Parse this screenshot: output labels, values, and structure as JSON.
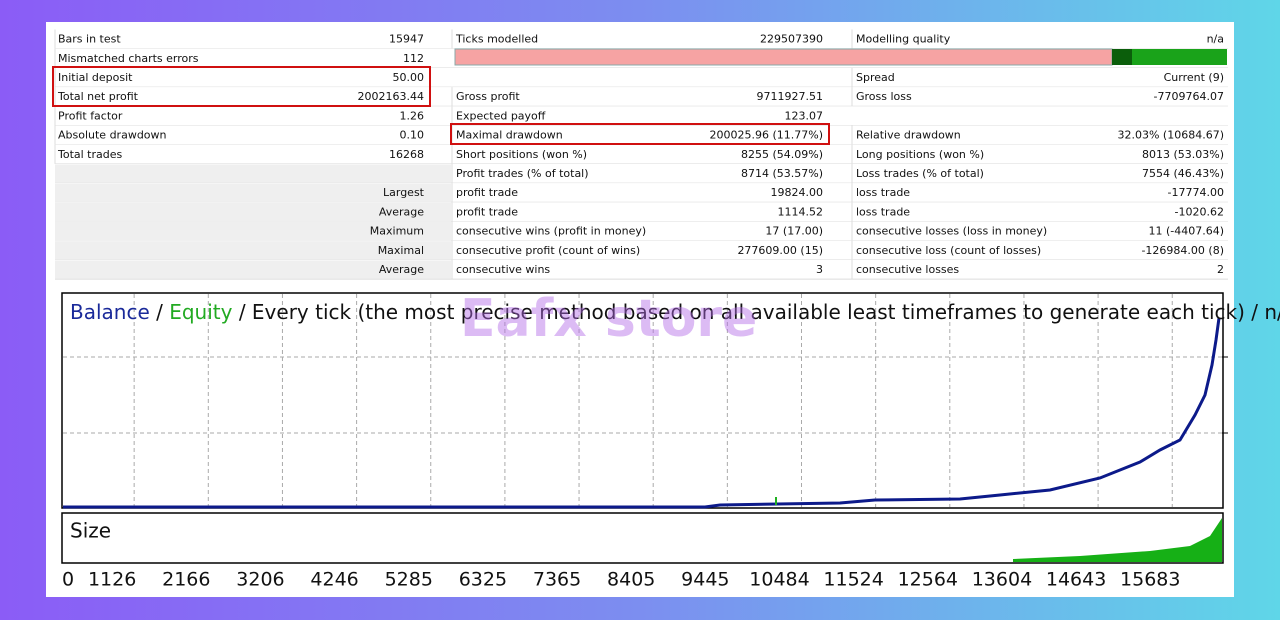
{
  "table": {
    "rows": [
      {
        "c1": [
          "Bars in test",
          "15947"
        ],
        "c2": [
          "Ticks modelled",
          "229507390"
        ],
        "c3": [
          "Modelling quality",
          "n/a"
        ]
      },
      {
        "c1": [
          "Mismatched charts errors",
          "112"
        ]
      },
      {
        "c1": [
          "Initial deposit",
          "50.00"
        ],
        "c3": [
          "Spread",
          "Current (9)"
        ]
      },
      {
        "c1": [
          "Total net profit",
          "2002163.44"
        ],
        "c2": [
          "Gross profit",
          "9711927.51"
        ],
        "c3": [
          "Gross loss",
          "-7709764.07"
        ]
      },
      {
        "c1": [
          "Profit factor",
          "1.26"
        ],
        "c2": [
          "Expected payoff",
          "123.07"
        ]
      },
      {
        "c1": [
          "Absolute drawdown",
          "0.10"
        ],
        "c2": [
          "Maximal drawdown",
          "200025.96 (11.77%)"
        ],
        "c3": [
          "Relative drawdown",
          "32.03% (10684.67)"
        ]
      },
      {
        "c1": [
          "Total trades",
          "16268"
        ],
        "c2": [
          "Short positions (won %)",
          "8255 (54.09%)"
        ],
        "c3": [
          "Long positions (won %)",
          "8013 (53.03%)"
        ]
      },
      {
        "c2": [
          "Profit trades (% of total)",
          "8714 (53.57%)"
        ],
        "c3": [
          "Loss trades (% of total)",
          "7554 (46.43%)"
        ]
      },
      {
        "lead": "Largest",
        "c2": [
          "profit trade",
          "19824.00"
        ],
        "c3": [
          "loss trade",
          "-17774.00"
        ]
      },
      {
        "lead": "Average",
        "c2": [
          "profit trade",
          "1114.52"
        ],
        "c3": [
          "loss trade",
          "-1020.62"
        ]
      },
      {
        "lead": "Maximum",
        "c2": [
          "consecutive wins (profit in money)",
          "17 (17.00)"
        ],
        "c3": [
          "consecutive losses (loss in money)",
          "11 (-4407.64)"
        ]
      },
      {
        "lead": "Maximal",
        "c2": [
          "consecutive profit (count of wins)",
          "277609.00 (15)"
        ],
        "c3": [
          "consecutive loss (count of losses)",
          "-126984.00 (8)"
        ]
      },
      {
        "lead": "Average",
        "c2": [
          "consecutive wins",
          "3"
        ],
        "c3": [
          "consecutive losses",
          "2"
        ]
      }
    ]
  },
  "chart": {
    "title": {
      "balance": "Balance",
      "sep1": " / ",
      "equity": "Equity",
      "rest": " / Every tick (the most precise method based on all available least timeframes to generate each tick) / n/a"
    },
    "size_label": "Size",
    "xticks": [
      "0",
      "1126",
      "2166",
      "3206",
      "4246",
      "5285",
      "6325",
      "7365",
      "8405",
      "9445",
      "10484",
      "11524",
      "12564",
      "13604",
      "14643",
      "15683"
    ]
  },
  "watermark": "Eafx store"
}
